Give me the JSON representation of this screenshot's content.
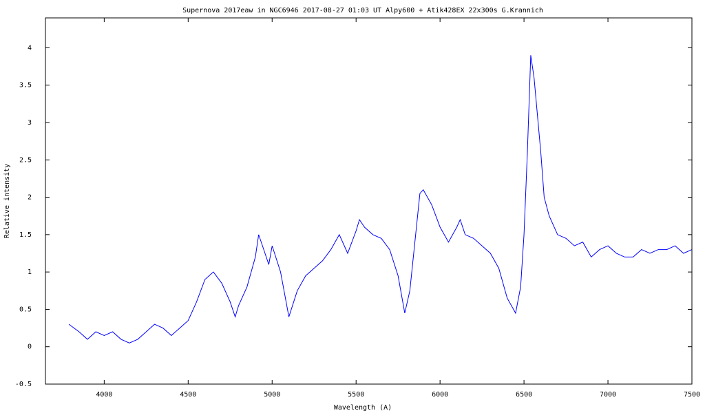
{
  "chart_data": {
    "type": "line",
    "title": "Supernova 2017eaw in NGC6946   2017-08-27 01:03 UT   Alpy600 + Atik428EX  22x300s   G.Krannich",
    "xlabel": "Wavelength (A)",
    "ylabel": "Relative intensity",
    "xlim": [
      3650,
      7500
    ],
    "ylim": [
      -0.5,
      4.4
    ],
    "grid": false,
    "legend": "none",
    "series_color": "#0000ff",
    "x_ticks": [
      4000,
      4500,
      5000,
      5500,
      6000,
      6500,
      7000,
      7500
    ],
    "x_tick_labels": [
      "4000",
      "4500",
      "5000",
      "5500",
      "6000",
      "6500",
      "7000",
      "7500"
    ],
    "y_ticks": [
      -0.5,
      0,
      0.5,
      1,
      1.5,
      2,
      2.5,
      3,
      3.5,
      4
    ],
    "y_tick_labels": [
      "-0.5",
      "0",
      "0.5",
      "1",
      "1.5",
      "2",
      "2.5",
      "3",
      "3.5",
      "4"
    ],
    "series": [
      {
        "x": [
          3790,
          3850,
          3900,
          3950,
          4000,
          4050,
          4100,
          4150,
          4200,
          4250,
          4300,
          4350,
          4400,
          4450,
          4500,
          4550,
          4600,
          4650,
          4700,
          4750,
          4780,
          4800,
          4850,
          4900,
          4920,
          4950,
          4980,
          5000,
          5050,
          5100,
          5150,
          5200,
          5250,
          5300,
          5350,
          5400,
          5450,
          5500,
          5520,
          5550,
          5600,
          5650,
          5700,
          5750,
          5790,
          5820,
          5850,
          5880,
          5900,
          5950,
          6000,
          6050,
          6100,
          6120,
          6150,
          6200,
          6250,
          6300,
          6350,
          6400,
          6450,
          6480,
          6500,
          6520,
          6540,
          6560,
          6580,
          6600,
          6620,
          6650,
          6700,
          6750,
          6800,
          6850,
          6900,
          6950,
          7000,
          7050,
          7100,
          7150,
          7200,
          7250,
          7300,
          7350,
          7400,
          7450,
          7500
        ],
        "y": [
          0.3,
          0.2,
          0.1,
          0.2,
          0.15,
          0.2,
          0.1,
          0.05,
          0.1,
          0.2,
          0.3,
          0.25,
          0.15,
          0.25,
          0.35,
          0.6,
          0.9,
          1.0,
          0.85,
          0.6,
          0.4,
          0.55,
          0.8,
          1.2,
          1.5,
          1.3,
          1.1,
          1.35,
          1.0,
          0.4,
          0.75,
          0.95,
          1.05,
          1.15,
          1.3,
          1.5,
          1.25,
          1.55,
          1.7,
          1.6,
          1.5,
          1.45,
          1.3,
          0.95,
          0.45,
          0.75,
          1.4,
          2.05,
          2.1,
          1.9,
          1.6,
          1.4,
          1.6,
          1.7,
          1.5,
          1.45,
          1.35,
          1.25,
          1.05,
          0.65,
          0.45,
          0.8,
          1.5,
          2.6,
          3.9,
          3.6,
          3.1,
          2.6,
          2.0,
          1.75,
          1.5,
          1.45,
          1.35,
          1.4,
          1.2,
          1.3,
          1.35,
          1.25,
          1.2,
          1.2,
          1.3,
          1.25,
          1.3,
          1.3,
          1.35,
          1.25,
          1.3
        ]
      }
    ]
  }
}
